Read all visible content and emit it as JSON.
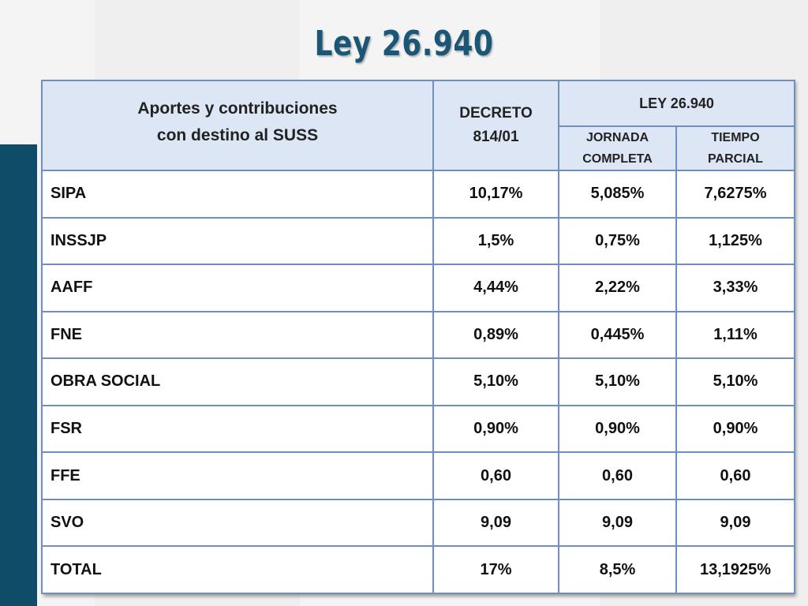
{
  "title": "Ley 26.940",
  "table": {
    "header": {
      "concept": "Aportes y contribuciones con destino al SUSS",
      "decreto": "DECRETO 814/01",
      "ley": "LEY 26.940",
      "jornada": "JORNADA COMPLETA",
      "tiempo": "TIEMPO PARCIAL"
    },
    "rows": [
      {
        "label": "SIPA",
        "decreto": "10,17%",
        "jornada": "5,085%",
        "parcial": "7,6275%"
      },
      {
        "label": "INSSJP",
        "decreto": "1,5%",
        "jornada": "0,75%",
        "parcial": "1,125%"
      },
      {
        "label": "AAFF",
        "decreto": "4,44%",
        "jornada": "2,22%",
        "parcial": "3,33%"
      },
      {
        "label": "FNE",
        "decreto": "0,89%",
        "jornada": "0,445%",
        "parcial": "1,11%"
      },
      {
        "label": "OBRA SOCIAL",
        "decreto": "5,10%",
        "jornada": "5,10%",
        "parcial": "5,10%"
      },
      {
        "label": "FSR",
        "decreto": "0,90%",
        "jornada": "0,90%",
        "parcial": "0,90%"
      },
      {
        "label": "FFE",
        "decreto": "0,60",
        "jornada": "0,60",
        "parcial": "0,60"
      },
      {
        "label": "SVO",
        "decreto": "9,09",
        "jornada": "9,09",
        "parcial": "9,09"
      },
      {
        "label": "TOTAL",
        "decreto": "17%",
        "jornada": "8,5%",
        "parcial": "13,1925%"
      }
    ]
  }
}
